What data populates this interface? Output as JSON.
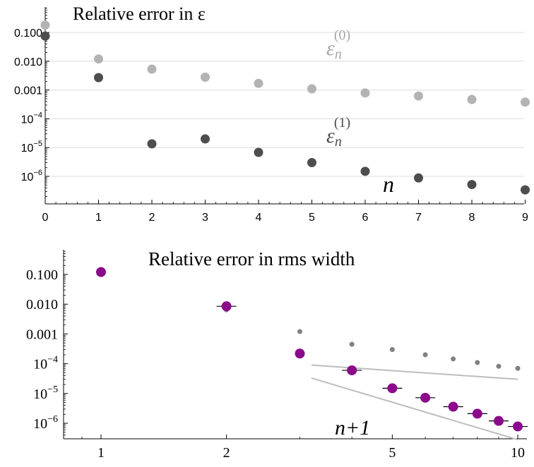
{
  "chart_data": [
    {
      "type": "scatter",
      "title": "Relative error in ε",
      "xlabel": "n",
      "ylabel": "",
      "log_y": true,
      "xlim": [
        0,
        9.1
      ],
      "ylim": [
        3e-07,
        0.4
      ],
      "x_ticks": [
        "0",
        "1",
        "2",
        "3",
        "4",
        "5",
        "6",
        "7",
        "8",
        "9"
      ],
      "y_ticks": [
        {
          "value": 0.1,
          "base": "0.100",
          "exp": ""
        },
        {
          "value": 0.01,
          "base": "0.010",
          "exp": ""
        },
        {
          "value": 0.001,
          "base": "0.001",
          "exp": ""
        },
        {
          "value": 0.0001,
          "base": "10",
          "exp": "−4"
        },
        {
          "value": 1e-05,
          "base": "10",
          "exp": "−5"
        },
        {
          "value": 1e-06,
          "base": "10",
          "exp": "−6"
        }
      ],
      "grid": true,
      "series": [
        {
          "name": "ε_n^(0)",
          "label_sym": "ε",
          "label_sub": "n",
          "label_sup": "(0)",
          "color": "#b3b3b3",
          "x": [
            0,
            1,
            2,
            3,
            4,
            5,
            6,
            7,
            8,
            9
          ],
          "values": [
            0.18,
            0.012,
            0.0053,
            0.0028,
            0.0017,
            0.0011,
            0.00079,
            0.00062,
            0.00047,
            0.00038
          ]
        },
        {
          "name": "ε_n^(1)",
          "label_sym": "ε",
          "label_sub": "n",
          "label_sup": "(1)",
          "color": "#4d4d4d",
          "x": [
            0,
            1,
            2,
            3,
            4,
            5,
            6,
            7,
            8,
            9
          ],
          "values": [
            0.075,
            0.0027,
            1.35e-05,
            2e-05,
            6.8e-06,
            3e-06,
            1.5e-06,
            8.8e-07,
            5.2e-07,
            3.4e-07
          ]
        }
      ]
    },
    {
      "type": "scatter",
      "title": "Relative error in rms width",
      "xlabel": "n+1",
      "ylabel": "",
      "log_x": true,
      "log_y": true,
      "xlim": [
        0.86,
        10.2
      ],
      "ylim": [
        3e-07,
        0.35
      ],
      "x_ticks": [
        "1",
        "2",
        "5",
        "10"
      ],
      "y_ticks": [
        {
          "value": 0.1,
          "base": "0.100",
          "exp": ""
        },
        {
          "value": 0.01,
          "base": "0.010",
          "exp": ""
        },
        {
          "value": 0.001,
          "base": "0.001",
          "exp": ""
        },
        {
          "value": 0.0001,
          "base": "10",
          "exp": "−4"
        },
        {
          "value": 1e-05,
          "base": "10",
          "exp": "−5"
        },
        {
          "value": 1e-06,
          "base": "10",
          "exp": "−6"
        }
      ],
      "grid": false,
      "series": [
        {
          "color": "#808080",
          "marker": "small-dot",
          "x": [
            1,
            2,
            3,
            4,
            5,
            6,
            7,
            8,
            9,
            10
          ],
          "values": [
            0.13,
            0.0065,
            0.0012,
            0.00045,
            0.0003,
            0.0002,
            0.000145,
            0.00011,
            8.2e-05,
            7e-05
          ]
        },
        {
          "color": "#8b0a8b",
          "marker": "dot-with-bar",
          "x": [
            1,
            2,
            3,
            4,
            5,
            6,
            7,
            8,
            9,
            10
          ],
          "values": [
            0.12,
            0.0085,
            0.00022,
            6e-05,
            1.5e-05,
            7.2e-06,
            3.6e-06,
            2.1e-06,
            1.2e-06,
            7.8e-07
          ]
        }
      ],
      "reference_lines": [
        {
          "color": "#bdbdbd",
          "x": [
            3.2,
            10
          ],
          "values": [
            9e-05,
            3e-05
          ]
        },
        {
          "color": "#bdbdbd",
          "x": [
            3.2,
            10
          ],
          "values": [
            3.3e-05,
            2.8e-07
          ]
        }
      ]
    }
  ]
}
